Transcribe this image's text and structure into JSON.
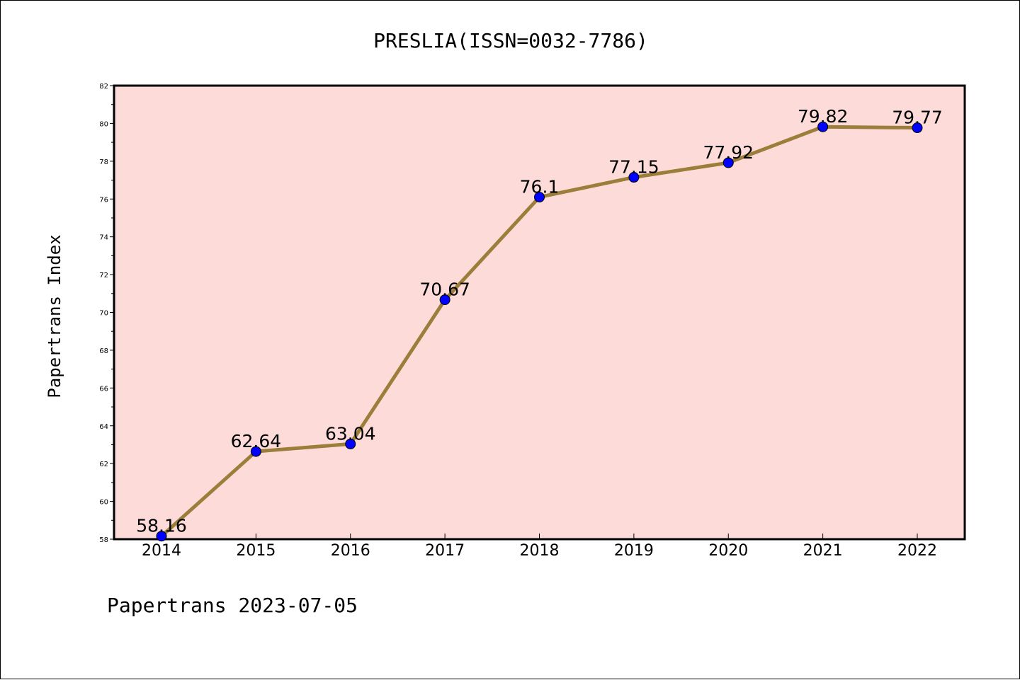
{
  "chart_data": {
    "type": "line",
    "title": "PRESLIA(ISSN=0032-7786)",
    "ylabel": "Papertrans Index",
    "xlabel": "",
    "footer": "Papertrans 2023-07-05",
    "categories": [
      "2014",
      "2015",
      "2016",
      "2017",
      "2018",
      "2019",
      "2020",
      "2021",
      "2022"
    ],
    "values": [
      58.16,
      62.64,
      63.04,
      70.67,
      76.1,
      77.15,
      77.92,
      79.82,
      79.77
    ],
    "data_labels": [
      "58.16",
      "62.64",
      "63.04",
      "70.67",
      "76.1",
      "77.15",
      "77.92",
      "79.82",
      "79.77"
    ],
    "ylim": [
      58,
      82
    ],
    "yticks": [
      "58",
      "60",
      "62",
      "64",
      "66",
      "68",
      "70",
      "72",
      "74",
      "76",
      "78",
      "80",
      "82"
    ],
    "grid": false,
    "colors": {
      "plot_background": "#fddbd9",
      "line": "#9b7e3a",
      "marker": "#0000ff"
    }
  }
}
